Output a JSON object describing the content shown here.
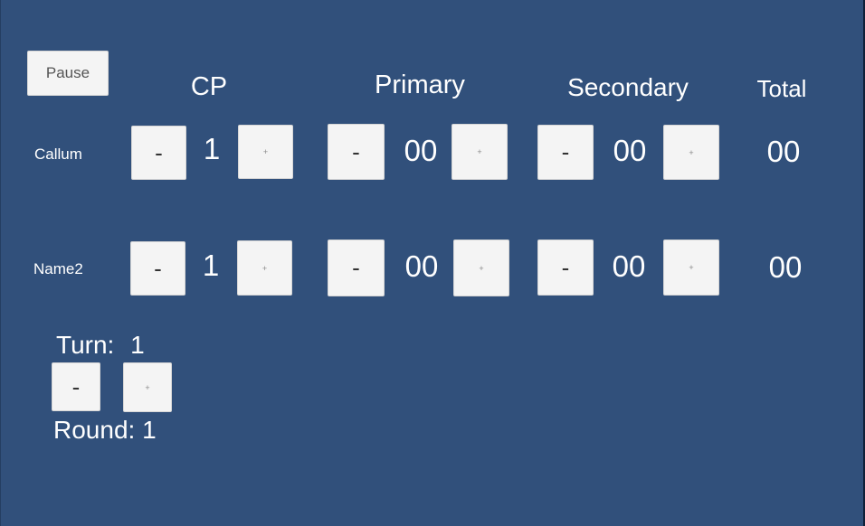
{
  "controls": {
    "pause_label": "Pause"
  },
  "headers": {
    "cp": "CP",
    "primary": "Primary",
    "secondary": "Secondary",
    "total": "Total"
  },
  "buttons": {
    "minus": "-",
    "plus": "+"
  },
  "players": [
    {
      "name": "Callum",
      "cp": "1",
      "primary": "00",
      "secondary": "00",
      "total": "00"
    },
    {
      "name": "Name2",
      "cp": "1",
      "primary": "00",
      "secondary": "00",
      "total": "00"
    }
  ],
  "turn": {
    "label": "Turn:",
    "value": "1"
  },
  "round": {
    "label": "Round:",
    "value": "1"
  },
  "colors": {
    "background": "#31507b",
    "button": "#f4f4f4",
    "text": "#ffffff"
  }
}
